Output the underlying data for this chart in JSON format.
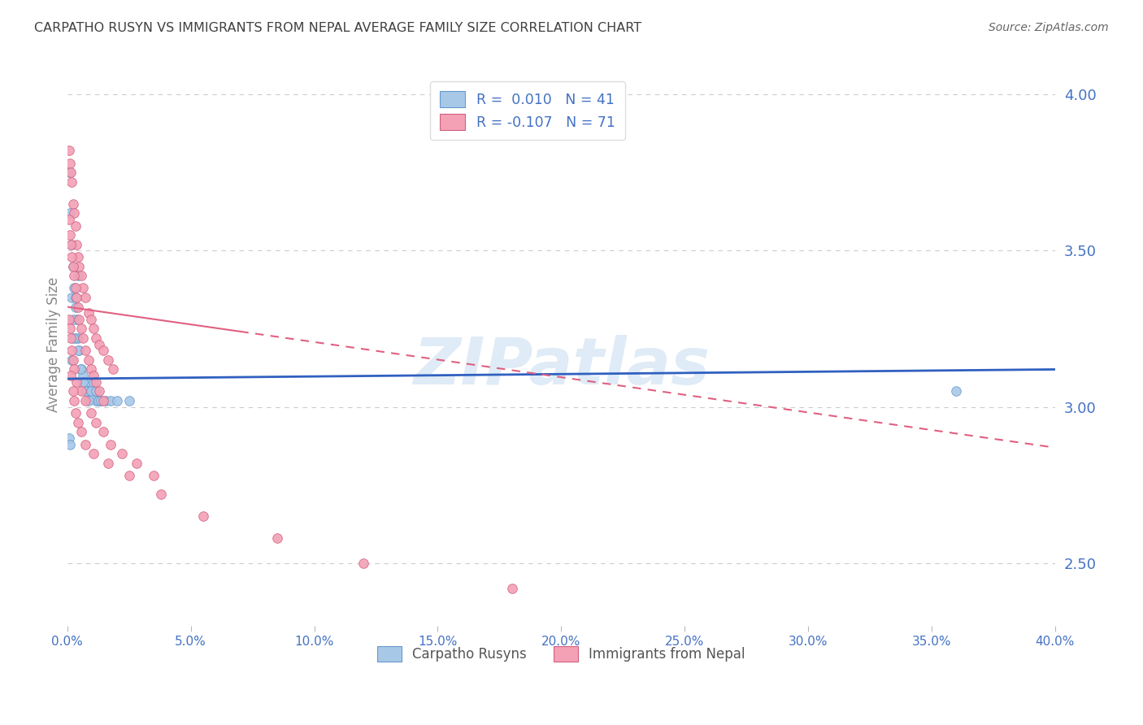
{
  "title": "CARPATHO RUSYN VS IMMIGRANTS FROM NEPAL AVERAGE FAMILY SIZE CORRELATION CHART",
  "source": "Source: ZipAtlas.com",
  "ylabel": "Average Family Size",
  "yticks": [
    2.5,
    3.0,
    3.5,
    4.0
  ],
  "xticks_pct": [
    0.0,
    5.0,
    10.0,
    15.0,
    20.0,
    25.0,
    30.0,
    35.0,
    40.0
  ],
  "legend_label1": "Carpatho Rusyns",
  "legend_label2": "Immigrants from Nepal",
  "legend_R1": "0.010",
  "legend_N1": "41",
  "legend_R2": "-0.107",
  "legend_N2": "71",
  "color_blue_fill": "#A8C8E8",
  "color_blue_edge": "#6699CC",
  "color_pink_fill": "#F4A0B5",
  "color_pink_edge": "#D06080",
  "color_trendline_blue": "#3060C0",
  "color_trendline_pink": "#E06080",
  "color_axis_labels": "#4472C4",
  "color_title": "#404040",
  "color_source": "#666666",
  "color_grid": "#CCCCCC",
  "watermark": "ZIPatlas",
  "scatter_blue_x": [
    0.08,
    0.12,
    0.18,
    0.22,
    0.28,
    0.32,
    0.38,
    0.42,
    0.48,
    0.55,
    0.62,
    0.72,
    0.85,
    0.95,
    1.05,
    1.15,
    1.28,
    0.18,
    0.25,
    0.32,
    0.42,
    0.52,
    0.62,
    0.72,
    0.85,
    0.95,
    1.05,
    1.15,
    1.25,
    1.35,
    1.55,
    1.75,
    2.0,
    2.5,
    0.08,
    0.12,
    0.18,
    0.25,
    0.32,
    0.42,
    36.0
  ],
  "scatter_blue_y": [
    3.75,
    3.62,
    3.52,
    3.45,
    3.38,
    3.32,
    3.28,
    3.22,
    3.18,
    3.12,
    3.1,
    3.08,
    3.05,
    3.05,
    3.05,
    3.02,
    3.02,
    3.35,
    3.28,
    3.22,
    3.18,
    3.12,
    3.08,
    3.05,
    3.02,
    3.05,
    3.08,
    3.05,
    3.02,
    3.02,
    3.02,
    3.02,
    3.02,
    3.02,
    2.9,
    2.88,
    3.15,
    3.22,
    3.35,
    3.42,
    3.05
  ],
  "scatter_pink_x": [
    0.08,
    0.12,
    0.15,
    0.18,
    0.22,
    0.28,
    0.32,
    0.38,
    0.42,
    0.48,
    0.55,
    0.62,
    0.72,
    0.85,
    0.95,
    1.05,
    1.15,
    1.28,
    1.45,
    1.65,
    1.85,
    0.08,
    0.12,
    0.15,
    0.18,
    0.22,
    0.28,
    0.32,
    0.38,
    0.42,
    0.48,
    0.55,
    0.62,
    0.72,
    0.85,
    0.95,
    1.05,
    1.15,
    1.28,
    1.45,
    0.08,
    0.12,
    0.15,
    0.18,
    0.22,
    0.28,
    0.38,
    0.55,
    0.72,
    0.95,
    1.15,
    1.45,
    1.75,
    2.2,
    2.8,
    3.5,
    0.15,
    0.22,
    0.28,
    0.32,
    0.42,
    0.55,
    0.72,
    1.05,
    1.65,
    2.5,
    3.8,
    5.5,
    8.5,
    12.0,
    18.0
  ],
  "scatter_pink_y": [
    3.82,
    3.78,
    3.75,
    3.72,
    3.65,
    3.62,
    3.58,
    3.52,
    3.48,
    3.45,
    3.42,
    3.38,
    3.35,
    3.3,
    3.28,
    3.25,
    3.22,
    3.2,
    3.18,
    3.15,
    3.12,
    3.6,
    3.55,
    3.52,
    3.48,
    3.45,
    3.42,
    3.38,
    3.35,
    3.32,
    3.28,
    3.25,
    3.22,
    3.18,
    3.15,
    3.12,
    3.1,
    3.08,
    3.05,
    3.02,
    3.28,
    3.25,
    3.22,
    3.18,
    3.15,
    3.12,
    3.08,
    3.05,
    3.02,
    2.98,
    2.95,
    2.92,
    2.88,
    2.85,
    2.82,
    2.78,
    3.1,
    3.05,
    3.02,
    2.98,
    2.95,
    2.92,
    2.88,
    2.85,
    2.82,
    2.78,
    2.72,
    2.65,
    2.58,
    2.5,
    2.42
  ],
  "xlim": [
    0,
    40
  ],
  "ylim": [
    2.3,
    4.1
  ],
  "trendline_blue_x0": 0,
  "trendline_blue_x1": 40,
  "trendline_blue_y0": 3.09,
  "trendline_blue_y1": 3.12,
  "trendline_pink_x0": 0,
  "trendline_pink_x1": 40,
  "trendline_pink_y0": 3.32,
  "trendline_pink_y1": 2.87,
  "trendline_pink_solid_x1": 7,
  "trendline_pink_solid_y1": 3.24
}
